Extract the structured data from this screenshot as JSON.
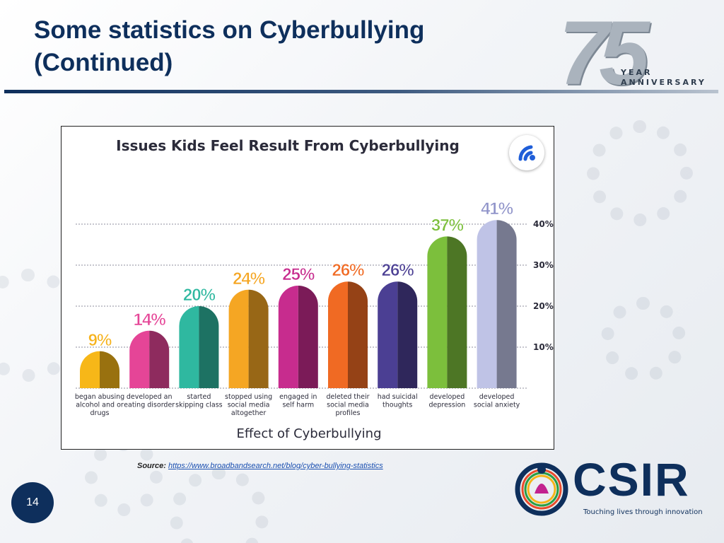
{
  "slide": {
    "title_line1": "Some statistics on Cyberbullying",
    "title_line2": "(Continued)",
    "page_number": "14",
    "anniversary": {
      "number": "75",
      "year": "YEAR",
      "word": "ANNIVERSARY"
    },
    "source_label": "Source:",
    "source_url": "https://www.broadbandsearch.net/blog/cyber-bullying-statistics",
    "org": {
      "name": "CSIR",
      "tagline": "Touching lives through innovation"
    },
    "colors": {
      "title": "#0e2f5c",
      "link": "#1a4fb0"
    }
  },
  "chart_data": {
    "type": "bar",
    "title": "Issues Kids Feel Result From Cyberbullying",
    "xlabel": "Effect of Cyberbullying",
    "ylabel": "",
    "ylim": [
      0,
      45
    ],
    "yticks": [
      10,
      20,
      30,
      40
    ],
    "ytick_labels": [
      "10%",
      "20%",
      "30%",
      "40%"
    ],
    "grid": true,
    "categories": [
      [
        "began abusing",
        "alcohol and or",
        "drugs"
      ],
      [
        "developed an",
        "eating disorder"
      ],
      [
        "started",
        "skipping class"
      ],
      [
        "stopped using",
        "social media",
        "altogether"
      ],
      [
        "engaged in",
        "self harm"
      ],
      [
        "deleted their",
        "social media",
        "profiles"
      ],
      [
        "had suicidal",
        "thoughts"
      ],
      [
        "developed",
        "depression"
      ],
      [
        "developed",
        "social anxiety"
      ]
    ],
    "values": [
      9,
      14,
      20,
      24,
      25,
      26,
      26,
      37,
      41
    ],
    "value_labels": [
      "9%",
      "14%",
      "20%",
      "24%",
      "25%",
      "26%",
      "26%",
      "37%",
      "41%"
    ],
    "colors": [
      "#f7b718",
      "#e54597",
      "#2fb8a0",
      "#f5a623",
      "#c72c8e",
      "#f06a23",
      "#4b3f93",
      "#7cbf3c",
      "#bfc3e6"
    ],
    "label_colors": [
      "#f6b21b",
      "#e54597",
      "#2fb8a0",
      "#f5a623",
      "#c72c8e",
      "#f06a23",
      "#4b3f93",
      "#7cbf3c",
      "#8f93c9"
    ]
  }
}
